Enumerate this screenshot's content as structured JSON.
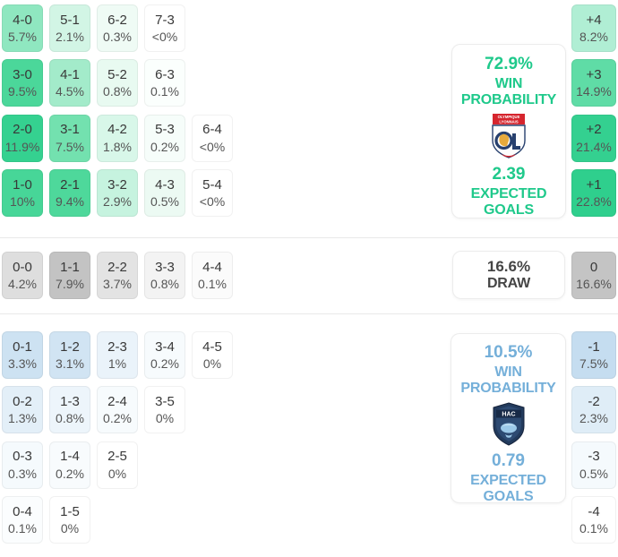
{
  "colors": {
    "home_accent": "#1fc98b",
    "away_accent": "#74afd9",
    "draw_text": "#454545",
    "draw_box": "#c4c4c4"
  },
  "grid": {
    "home_rows": [
      [
        {
          "label": "4-0",
          "pct": "5.7%",
          "bg": "#8fe7c0"
        },
        {
          "label": "5-1",
          "pct": "2.1%",
          "bg": "#d2f5e5"
        },
        {
          "label": "6-2",
          "pct": "0.3%",
          "bg": "#effbf5"
        },
        {
          "label": "7-3",
          "pct": "<0%",
          "bg": "#ffffff"
        }
      ],
      [
        {
          "label": "3-0",
          "pct": "9.5%",
          "bg": "#4bd79a"
        },
        {
          "label": "4-1",
          "pct": "4.5%",
          "bg": "#a3ebca"
        },
        {
          "label": "5-2",
          "pct": "0.8%",
          "bg": "#e8faf1"
        },
        {
          "label": "6-3",
          "pct": "0.1%",
          "bg": "#fbfffd"
        }
      ],
      [
        {
          "label": "2-0",
          "pct": "11.9%",
          "bg": "#35d190"
        },
        {
          "label": "3-1",
          "pct": "7.5%",
          "bg": "#73e1af"
        },
        {
          "label": "4-2",
          "pct": "1.8%",
          "bg": "#d8f7e9"
        },
        {
          "label": "5-3",
          "pct": "0.2%",
          "bg": "#f6fdfa"
        },
        {
          "label": "6-4",
          "pct": "<0%",
          "bg": "#ffffff"
        }
      ],
      [
        {
          "label": "1-0",
          "pct": "10%",
          "bg": "#47d698"
        },
        {
          "label": "2-1",
          "pct": "9.4%",
          "bg": "#4ed89b"
        },
        {
          "label": "3-2",
          "pct": "2.9%",
          "bg": "#c6f3df"
        },
        {
          "label": "4-3",
          "pct": "0.5%",
          "bg": "#ecfaf3"
        },
        {
          "label": "5-4",
          "pct": "<0%",
          "bg": "#ffffff"
        }
      ]
    ],
    "draw_rows": [
      [
        {
          "label": "0-0",
          "pct": "4.2%",
          "bg": "#dedede"
        },
        {
          "label": "1-1",
          "pct": "7.9%",
          "bg": "#c3c3c3"
        },
        {
          "label": "2-2",
          "pct": "3.7%",
          "bg": "#e3e3e3"
        },
        {
          "label": "3-3",
          "pct": "0.8%",
          "bg": "#f3f3f3"
        },
        {
          "label": "4-4",
          "pct": "0.1%",
          "bg": "#fbfbfb"
        }
      ]
    ],
    "away_rows": [
      [
        {
          "label": "0-1",
          "pct": "3.3%",
          "bg": "#cde2f2"
        },
        {
          "label": "1-2",
          "pct": "3.1%",
          "bg": "#d1e4f3"
        },
        {
          "label": "2-3",
          "pct": "1%",
          "bg": "#eaf3fa"
        },
        {
          "label": "3-4",
          "pct": "0.2%",
          "bg": "#f7fbfd"
        },
        {
          "label": "4-5",
          "pct": "0%",
          "bg": "#ffffff"
        }
      ],
      [
        {
          "label": "0-2",
          "pct": "1.3%",
          "bg": "#e3eff8"
        },
        {
          "label": "1-3",
          "pct": "0.8%",
          "bg": "#edf5fb"
        },
        {
          "label": "2-4",
          "pct": "0.2%",
          "bg": "#f7fbfd"
        },
        {
          "label": "3-5",
          "pct": "0%",
          "bg": "#ffffff"
        }
      ],
      [
        {
          "label": "0-3",
          "pct": "0.3%",
          "bg": "#f5fafd"
        },
        {
          "label": "1-4",
          "pct": "0.2%",
          "bg": "#f8fbfd"
        },
        {
          "label": "2-5",
          "pct": "0%",
          "bg": "#ffffff"
        }
      ],
      [
        {
          "label": "0-4",
          "pct": "0.1%",
          "bg": "#fbfdfe"
        },
        {
          "label": "1-5",
          "pct": "0%",
          "bg": "#ffffff"
        }
      ]
    ]
  },
  "goal_diff": {
    "home": [
      {
        "label": "+4",
        "pct": "8.2%",
        "bg": "#b0eed4"
      },
      {
        "label": "+3",
        "pct": "14.9%",
        "bg": "#5fdca6"
      },
      {
        "label": "+2",
        "pct": "21.4%",
        "bg": "#34d090"
      },
      {
        "label": "+1",
        "pct": "22.8%",
        "bg": "#2fcf8d"
      }
    ],
    "draw": [
      {
        "label": "0",
        "pct": "16.6%",
        "bg": "#c4c4c4"
      }
    ],
    "away": [
      {
        "label": "-1",
        "pct": "7.5%",
        "bg": "#c5ddf0"
      },
      {
        "label": "-2",
        "pct": "2.3%",
        "bg": "#dfedf7"
      },
      {
        "label": "-3",
        "pct": "0.5%",
        "bg": "#f5fafd"
      },
      {
        "label": "-4",
        "pct": "0.1%",
        "bg": "#ffffff"
      }
    ]
  },
  "panels": {
    "home": {
      "probability": "72.9%",
      "probability_label": "WIN PROBABILITY",
      "expected_goals": "2.39",
      "expected_goals_label": "EXPECTED GOALS"
    },
    "draw": {
      "probability": "16.6%",
      "label": "DRAW"
    },
    "away": {
      "probability": "10.5%",
      "probability_label": "WIN PROBABILITY",
      "expected_goals": "0.79",
      "expected_goals_label": "EXPECTED GOALS"
    }
  },
  "logos": {
    "ol": {
      "line1": "OLYMPIQUE",
      "line2": "LYONNAIS"
    },
    "hac": {
      "text": "HAC"
    }
  }
}
